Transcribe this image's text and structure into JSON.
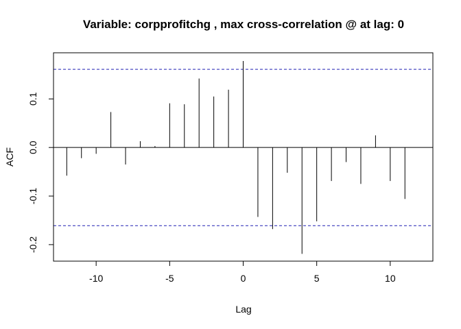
{
  "chart_data": {
    "type": "bar",
    "title": "Variable: corpprofitchg , max cross-correlation @ at lag: 0",
    "xlabel": "Lag",
    "ylabel": "ACF",
    "xlim": [
      -12.9,
      12.9
    ],
    "ylim": [
      -0.234,
      0.195
    ],
    "x_ticks": [
      -10,
      -5,
      0,
      5,
      10
    ],
    "x_tick_labels": [
      "-10",
      "-5",
      "0",
      "5",
      "10"
    ],
    "y_ticks": [
      -0.2,
      -0.1,
      0.0,
      0.1
    ],
    "y_tick_labels": [
      "-0.2",
      "-0.1",
      "0.0",
      "0.1"
    ],
    "confidence_bound": 0.161,
    "grid": false,
    "legend": "none",
    "lags": [
      -12,
      -11,
      -10,
      -9,
      -8,
      -7,
      -6,
      -5,
      -4,
      -3,
      -2,
      -1,
      0,
      1,
      2,
      3,
      4,
      5,
      6,
      7,
      8,
      9,
      10,
      11
    ],
    "values": [
      -0.058,
      -0.022,
      -0.013,
      0.073,
      -0.035,
      0.013,
      0.003,
      0.091,
      0.089,
      0.142,
      0.105,
      0.119,
      0.178,
      -0.143,
      -0.168,
      -0.052,
      -0.219,
      -0.152,
      -0.069,
      -0.03,
      -0.075,
      0.025,
      -0.069,
      -0.106
    ],
    "colors": {
      "line": "#000000",
      "bound": "#1f1fb4"
    }
  }
}
